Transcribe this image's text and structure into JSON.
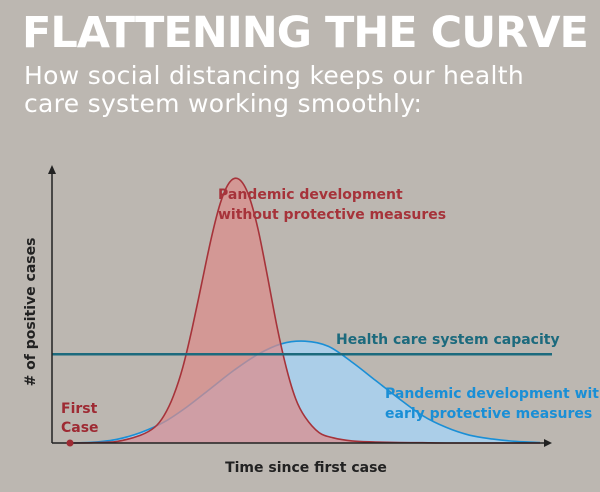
{
  "header": {
    "title": "FLATTENING THE CURVE",
    "subtitle": "How social distancing keeps our health care system working smoothly:"
  },
  "colors": {
    "background": "#bcb7b1",
    "unprotected": "#a6333a",
    "unprotected_fill": "#dc8c8a",
    "protected": "#1a8fd6",
    "protected_fill": "#a9d0ee",
    "capacity": "#1c6a7d",
    "axis": "#222222",
    "first_case": "#9e2a33"
  },
  "chart_data": {
    "type": "area",
    "title": "FLATTENING THE CURVE",
    "subtitle": "How social distancing keeps our health care system working smoothly:",
    "xlabel": "Time since first case",
    "ylabel": "# of positive cases",
    "xlim": [
      0,
      100
    ],
    "ylim": [
      0,
      100
    ],
    "grid": false,
    "legend": "none",
    "series": [
      {
        "name": "Pandemic development without protective measures",
        "x": [
          0,
          5,
          10,
          15,
          18,
          20,
          22,
          24,
          26,
          28,
          30,
          32,
          34,
          36,
          38,
          40,
          42,
          44,
          46,
          48,
          50,
          53,
          56,
          60,
          65,
          70,
          75,
          80,
          85,
          90,
          95,
          100
        ],
        "values": [
          0,
          0.1,
          0.6,
          3,
          6,
          10.5,
          18,
          29,
          44,
          61,
          78,
          92,
          100,
          101,
          95,
          82,
          64,
          45,
          29,
          17,
          10,
          4,
          2,
          0.8,
          0.4,
          0.2,
          0.1,
          0,
          0,
          0,
          0,
          0
        ]
      },
      {
        "name": "Pandemic development with early protective measures",
        "x": [
          0,
          5,
          10,
          15,
          20,
          25,
          30,
          35,
          40,
          45,
          50,
          55,
          60,
          65,
          70,
          75,
          80,
          85,
          90,
          95,
          100
        ],
        "values": [
          0,
          0.3,
          1.4,
          4,
          8,
          14,
          21,
          28,
          34,
          38,
          39,
          37,
          31,
          24,
          17,
          10.5,
          6,
          3,
          1.5,
          0.6,
          0.2
        ]
      }
    ],
    "threshold": {
      "label": "Health care system capacity",
      "value": 34
    },
    "annotations": [
      {
        "text": [
          "Pandemic development",
          "without protective measures"
        ],
        "target": "unprotected"
      },
      {
        "text": [
          "Pandemic development with",
          "early protective measures"
        ],
        "target": "protected"
      },
      {
        "text": [
          "First",
          "Case"
        ],
        "x": 0,
        "target": "first_case"
      }
    ]
  }
}
